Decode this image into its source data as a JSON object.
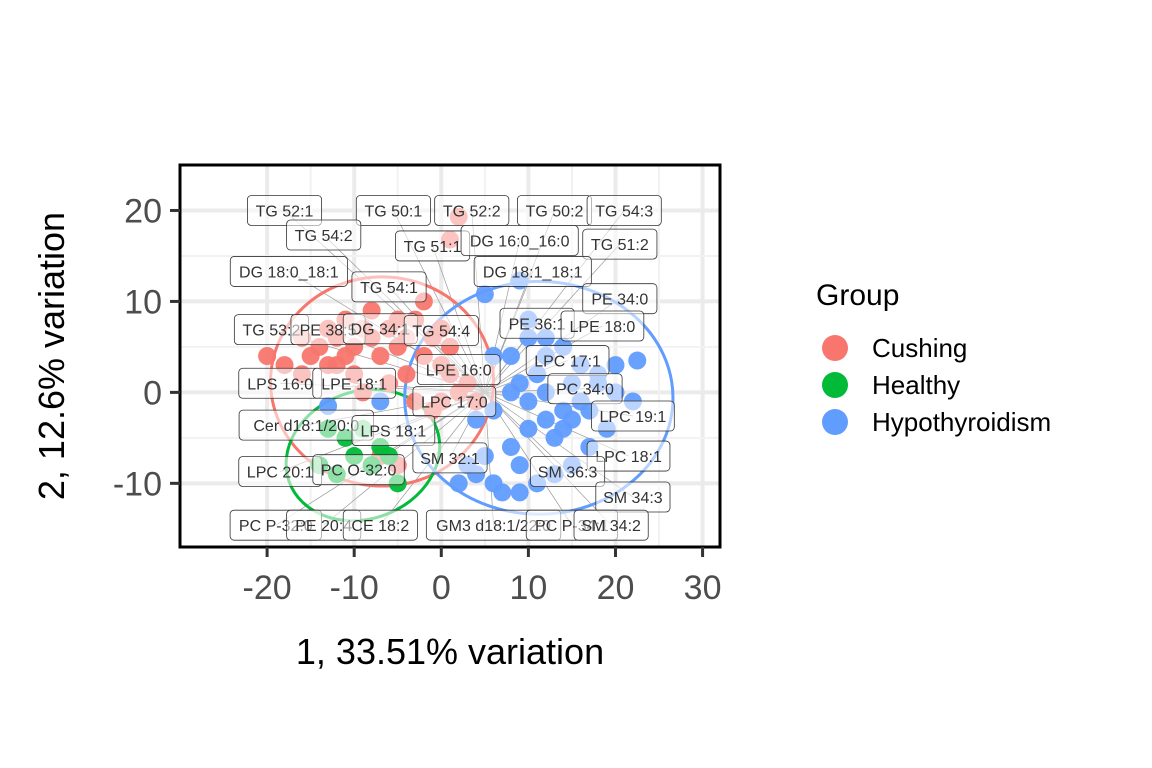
{
  "chart_data": {
    "type": "scatter",
    "xlabel": "1, 33.51% variation",
    "ylabel": "2, 12.6% variation",
    "xlim": [
      -30,
      32
    ],
    "ylim": [
      -17,
      25
    ],
    "x_ticks": [
      -20,
      -10,
      0,
      10,
      20,
      30
    ],
    "x_tick_labels": [
      "-20",
      "-10",
      "0",
      "10",
      "20",
      "30"
    ],
    "y_ticks": [
      -10,
      0,
      10,
      20
    ],
    "y_tick_labels": [
      "-10",
      "0",
      "10",
      "20"
    ],
    "grid": true,
    "legend": {
      "title": "Group",
      "position": "right",
      "entries": [
        {
          "name": "Cushing",
          "color": "#F8766D"
        },
        {
          "name": "Healthy",
          "color": "#00BA38"
        },
        {
          "name": "Hypothyroidism",
          "color": "#619CFF"
        }
      ]
    },
    "series": [
      {
        "name": "Cushing",
        "color": "#F8766D",
        "points": [
          [
            2,
            19.3
          ],
          [
            1,
            16.8
          ],
          [
            -20,
            4
          ],
          [
            -18,
            3
          ],
          [
            -16,
            6
          ],
          [
            -14,
            5
          ],
          [
            -13,
            7
          ],
          [
            -12,
            6
          ],
          [
            -11,
            8
          ],
          [
            -10,
            5
          ],
          [
            -9,
            7
          ],
          [
            -8,
            9
          ],
          [
            -8,
            6
          ],
          [
            -7,
            4
          ],
          [
            -6,
            7
          ],
          [
            -5,
            5
          ],
          [
            -5,
            8
          ],
          [
            -4,
            6
          ],
          [
            -3,
            8
          ],
          [
            -2,
            10
          ],
          [
            -2,
            4
          ],
          [
            -1,
            6
          ],
          [
            0,
            7
          ],
          [
            0,
            3
          ],
          [
            1,
            5
          ],
          [
            2,
            0
          ],
          [
            3,
            1
          ],
          [
            4,
            -1
          ],
          [
            -6,
            1
          ],
          [
            -10,
            2
          ],
          [
            -12,
            3
          ],
          [
            -9,
            0
          ],
          [
            -4,
            2
          ],
          [
            -3,
            -1
          ],
          [
            -1,
            -2
          ],
          [
            -7,
            -7
          ],
          [
            -5,
            -8
          ],
          [
            0,
            -1
          ],
          [
            1,
            2
          ],
          [
            -11,
            4
          ],
          [
            -15,
            4
          ],
          [
            -13,
            3
          ],
          [
            -16,
            2
          ]
        ]
      },
      {
        "name": "Healthy",
        "color": "#00BA38",
        "points": [
          [
            -12,
            -9
          ],
          [
            -14,
            -8
          ],
          [
            -10,
            -7
          ],
          [
            -8,
            -8
          ],
          [
            -6,
            -7
          ],
          [
            -5,
            -10
          ],
          [
            -13,
            -4
          ],
          [
            -11,
            -5
          ],
          [
            -9,
            -4
          ],
          [
            -7,
            -6
          ]
        ]
      },
      {
        "name": "Hypothyroidism",
        "color": "#619CFF",
        "points": [
          [
            9,
            12.3
          ],
          [
            5,
            10.8
          ],
          [
            10,
            8
          ],
          [
            12,
            6
          ],
          [
            14,
            5
          ],
          [
            16,
            3
          ],
          [
            18,
            2
          ],
          [
            20,
            0
          ],
          [
            22,
            -1
          ],
          [
            19,
            -4
          ],
          [
            17,
            -6
          ],
          [
            15,
            -8
          ],
          [
            13,
            -9
          ],
          [
            11,
            -10
          ],
          [
            9,
            -11
          ],
          [
            7,
            -11
          ],
          [
            6,
            -10
          ],
          [
            4,
            -9
          ],
          [
            2,
            -10
          ],
          [
            3,
            -8
          ],
          [
            5,
            -7
          ],
          [
            8,
            -6
          ],
          [
            10,
            -4
          ],
          [
            12,
            -3
          ],
          [
            14,
            -2
          ],
          [
            16,
            -1
          ],
          [
            18,
            1
          ],
          [
            20,
            3
          ],
          [
            22.5,
            3.5
          ],
          [
            11,
            2
          ],
          [
            9,
            1
          ],
          [
            8,
            0
          ],
          [
            10,
            -1
          ],
          [
            12,
            0
          ],
          [
            13,
            -5
          ],
          [
            15,
            -3
          ],
          [
            6,
            4
          ],
          [
            8,
            4
          ],
          [
            10,
            6
          ],
          [
            12,
            4
          ],
          [
            9,
            -8
          ],
          [
            6,
            -2
          ],
          [
            4,
            -3
          ],
          [
            -13,
            -1.5
          ],
          [
            -7,
            -1
          ],
          [
            15,
            1
          ],
          [
            17,
            -2
          ],
          [
            14,
            -4
          ]
        ]
      }
    ],
    "ellipses": [
      {
        "group": "Cushing",
        "color": "#F8766D",
        "cx": -6.8,
        "cy": 1.2,
        "rx": 12.8,
        "ry": 11.5,
        "angle_deg": 0
      },
      {
        "group": "Healthy",
        "color": "#00BA38",
        "cx": -9.0,
        "cy": -6.9,
        "rx": 9.0,
        "ry": 7.0,
        "angle_deg": -20
      },
      {
        "group": "Hypothyroidism",
        "color": "#619CFF",
        "cx": 11.2,
        "cy": -0.6,
        "rx": 15.4,
        "ry": 12.8,
        "angle_deg": 0
      }
    ],
    "loadings": [
      {
        "label": "TG 52:1",
        "x": -18,
        "y": 20
      },
      {
        "label": "TG 50:1",
        "x": -5.5,
        "y": 20
      },
      {
        "label": "TG 52:2",
        "x": 3.5,
        "y": 20
      },
      {
        "label": "TG 50:2",
        "x": 13,
        "y": 20
      },
      {
        "label": "TG 54:3",
        "x": 21,
        "y": 20
      },
      {
        "label": "TG 54:2",
        "x": -13.5,
        "y": 17.3
      },
      {
        "label": "TG 51:1",
        "x": -1,
        "y": 16.1
      },
      {
        "label": "DG 16:0_16:0",
        "x": 9,
        "y": 16.7
      },
      {
        "label": "TG 51:2",
        "x": 20.5,
        "y": 16.3
      },
      {
        "label": "DG 18:0_18:1",
        "x": -17.5,
        "y": 13.3
      },
      {
        "label": "DG 18:1_18:1",
        "x": 10.5,
        "y": 13.3
      },
      {
        "label": "TG 54:1",
        "x": -6,
        "y": 11.6
      },
      {
        "label": "PE 34:0",
        "x": 20.5,
        "y": 10.3
      },
      {
        "label": "TG 53:2",
        "x": -19.5,
        "y": 6.9
      },
      {
        "label": "PE 38:5",
        "x": -13,
        "y": 6.9
      },
      {
        "label": "DG 34:1",
        "x": -7,
        "y": 7.0
      },
      {
        "label": "TG 54:4",
        "x": 0,
        "y": 6.8
      },
      {
        "label": "PE 36:1",
        "x": 11,
        "y": 7.6
      },
      {
        "label": "LPE 18:0",
        "x": 18.5,
        "y": 7.3
      },
      {
        "label": "LPC 17:1",
        "x": 14.5,
        "y": 3.5
      },
      {
        "label": "LPE 16:0",
        "x": 2,
        "y": 2.5
      },
      {
        "label": "LPS 16:0",
        "x": -18.5,
        "y": 1.0
      },
      {
        "label": "LPE 18:1",
        "x": -10,
        "y": 1.0
      },
      {
        "label": "PC 34:0",
        "x": 16.5,
        "y": 0.4
      },
      {
        "label": "LPC 17:0",
        "x": 1.5,
        "y": -1.0
      },
      {
        "label": "LPC 19:1",
        "x": 22,
        "y": -2.6
      },
      {
        "label": "Cer d18:1/20:0",
        "x": -15.5,
        "y": -3.6
      },
      {
        "label": "LPS 18:1",
        "x": -5.5,
        "y": -4.2
      },
      {
        "label": "SM 32:1",
        "x": 1,
        "y": -7.2
      },
      {
        "label": "LPC 18:1",
        "x": 21.5,
        "y": -7.0
      },
      {
        "label": "LPC 20:1",
        "x": -18.5,
        "y": -8.7
      },
      {
        "label": "PC O-32:0",
        "x": -9.5,
        "y": -8.5
      },
      {
        "label": "SM 36:3",
        "x": 14.5,
        "y": -8.7
      },
      {
        "label": "SM 34:3",
        "x": 22,
        "y": -11.5
      },
      {
        "label": "PC P-32:0",
        "x": -19,
        "y": -14.6
      },
      {
        "label": "PE 20:4",
        "x": -13.5,
        "y": -14.6
      },
      {
        "label": "CE 18:2",
        "x": -7,
        "y": -14.6
      },
      {
        "label": "GM3 d18:1/22:0",
        "x": 6,
        "y": -14.6
      },
      {
        "label": "PC P-34:1",
        "x": 15,
        "y": -14.6
      },
      {
        "label": "SM 34:2",
        "x": 19.5,
        "y": -14.6
      }
    ]
  }
}
